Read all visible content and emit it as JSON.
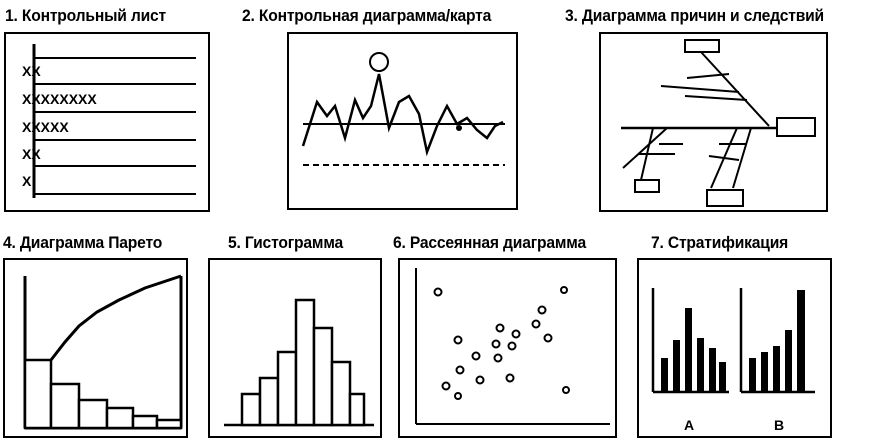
{
  "titles": [
    "1. Контрольный лист",
    "2. Контрольная диаграмма/карта",
    "3. Диаграмма причин и следствий",
    "4. Диаграмма Парето",
    "5. Гистограмма",
    "6. Рассеянная диаграмма",
    "7. Стратификация"
  ],
  "check_sheet": {
    "marks": [
      "XX",
      "XXXXXXXX",
      "XXXXX",
      "XX",
      "X"
    ]
  },
  "stratification": {
    "labels": [
      "A",
      "B"
    ]
  }
}
